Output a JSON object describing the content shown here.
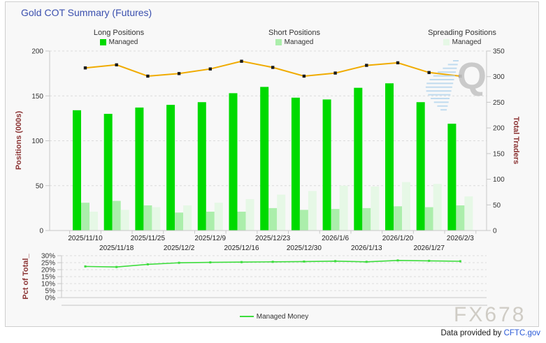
{
  "title": "Gold COT Summary (Futures)",
  "legend_groups": [
    {
      "title": "Long Positions",
      "item": "Managed",
      "color_key": "long"
    },
    {
      "title": "Short Positions",
      "item": "Managed",
      "color_key": "short"
    },
    {
      "title": "Spreading Positions",
      "item": "Managed",
      "color_key": "spreading"
    }
  ],
  "watermarks": {
    "chart_mark": "Q",
    "brand": "FX678"
  },
  "footer": {
    "text": "Data provided by ",
    "link": "CFTC.gov"
  },
  "colors": {
    "long": "#00da00",
    "short": "#abeeab",
    "spreading": "#e6f8e6",
    "traders": "#f0ab00",
    "marker": "#1b1b1b",
    "pct": "#3ddd3d",
    "axis_label": "#8b3333",
    "tick_text": "#333333",
    "grid": "#dbdbdb",
    "axis": "#c8c8c8",
    "title": "#3a4fae",
    "link": "#2b5bd7",
    "watermark_q": "#c6c6c6",
    "watermark_hash": "#b7d7ee",
    "watermark_brand": "#c9c5bd",
    "widget_bg": "#f8f8f8",
    "widget_border": "#cfcfcf"
  },
  "chart_data": [
    {
      "type": "bar",
      "title": "Gold COT Summary (Futures)",
      "categories": [
        "2025/11/10",
        "2025/11/18",
        "2025/11/25",
        "2025/12/2",
        "2025/12/9",
        "2025/12/16",
        "2025/12/23",
        "2025/12/30",
        "2026/1/6",
        "2026/1/13",
        "2026/1/20",
        "2026/1/27",
        "2026/2/3"
      ],
      "series": [
        {
          "name": "Managed (Long Positions)",
          "kind": "bar",
          "axis": "left",
          "color_key": "long",
          "values": [
            134,
            130,
            137,
            140,
            143,
            153,
            160,
            148,
            146,
            159,
            164,
            143,
            119
          ]
        },
        {
          "name": "Managed (Short Positions)",
          "kind": "bar",
          "axis": "left",
          "color_key": "short",
          "values": [
            31,
            33,
            28,
            20,
            21,
            21,
            25,
            23,
            24,
            25,
            27,
            26,
            28
          ]
        },
        {
          "name": "Managed (Spreading Positions)",
          "kind": "bar",
          "axis": "left",
          "color_key": "spreading",
          "values": [
            21,
            23,
            26,
            28,
            31,
            35,
            40,
            44,
            50,
            49,
            54,
            52,
            38
          ]
        },
        {
          "name": "Total Traders",
          "kind": "line",
          "axis": "right",
          "color_key": "traders",
          "values": [
            317,
            323,
            301,
            306,
            315,
            330,
            318,
            301,
            307,
            322,
            327,
            308,
            301
          ]
        }
      ],
      "left_axis": {
        "label": "Positions (000s)",
        "min": 0,
        "max": 200,
        "step": 50
      },
      "right_axis": {
        "label": "Total Traders",
        "min": 0,
        "max": 350,
        "step": 50
      },
      "grid": "dashed",
      "legend_position": "top"
    },
    {
      "type": "line",
      "categories": [
        "2025/11/10",
        "2025/11/18",
        "2025/11/25",
        "2025/12/2",
        "2025/12/9",
        "2025/12/16",
        "2025/12/23",
        "2025/12/30",
        "2026/1/6",
        "2026/1/13",
        "2026/1/20",
        "2026/1/27",
        "2026/2/3"
      ],
      "series": [
        {
          "name": "Managed Money",
          "kind": "line",
          "color_key": "pct",
          "values": [
            22.3,
            21.9,
            23.8,
            24.9,
            25.2,
            25.4,
            25.6,
            25.8,
            26.1,
            25.6,
            26.6,
            26.3,
            26.0
          ]
        }
      ],
      "y_axis": {
        "label": "Pct of Total_",
        "min": 0,
        "max": 30,
        "step": 5,
        "suffix": "%"
      },
      "grid": "dashed",
      "legend_position": "bottom",
      "legend_label": "Managed Money"
    }
  ]
}
